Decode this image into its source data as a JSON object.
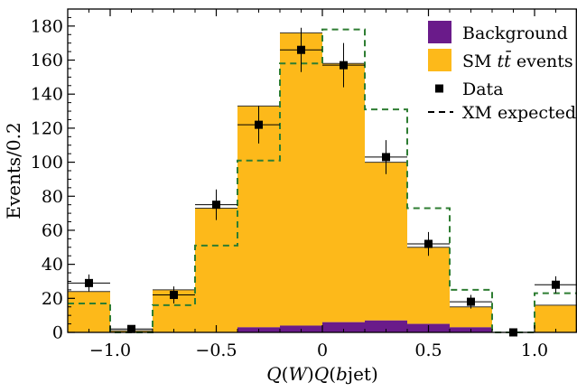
{
  "chart_data": {
    "type": "bar",
    "xlabel": "Q(W)Q(bjet)",
    "ylabel": "Events/0.2",
    "xlim": [
      -1.2,
      1.2
    ],
    "ylim": [
      0,
      190
    ],
    "x_ticks": [
      -1.0,
      -0.5,
      0.0,
      0.5,
      1.0
    ],
    "x_tick_labels": [
      "−1.0",
      "−0.5",
      "0",
      "0.5",
      "1.0"
    ],
    "y_ticks": [
      0,
      20,
      40,
      60,
      80,
      100,
      120,
      140,
      160,
      180
    ],
    "y_tick_labels": [
      "0",
      "20",
      "40",
      "60",
      "80",
      "100",
      "120",
      "140",
      "160",
      "180"
    ],
    "bin_edges": [
      -1.2,
      -1.0,
      -0.8,
      -0.6,
      -0.4,
      -0.2,
      0.0,
      0.2,
      0.4,
      0.6,
      0.8,
      1.0,
      1.2
    ],
    "legend_position": "top-right",
    "colors": {
      "background": "#6a1b8a",
      "sm": "#fdb91a",
      "xm": "#2e7d32",
      "data": "#000000"
    },
    "series": [
      {
        "name": "Background",
        "kind": "stacked-fill",
        "values": [
          0,
          0,
          0,
          0,
          3,
          4,
          6,
          7,
          5,
          3,
          0,
          0
        ]
      },
      {
        "name": "SM tt̄ events",
        "kind": "stacked-fill",
        "values": [
          24,
          1,
          25,
          73,
          130,
          172,
          152,
          93,
          45,
          12,
          0,
          16
        ]
      },
      {
        "name": "XM expected",
        "kind": "dashed-step",
        "values": [
          17,
          0,
          16,
          51,
          101,
          158,
          178,
          131,
          73,
          25,
          0,
          23
        ]
      },
      {
        "name": "Data",
        "kind": "points",
        "x": [
          -1.1,
          -0.9,
          -0.7,
          -0.5,
          -0.3,
          -0.1,
          0.1,
          0.3,
          0.5,
          0.7,
          0.9,
          1.1
        ],
        "values": [
          29,
          2,
          22,
          75,
          122,
          166,
          157,
          103,
          52,
          18,
          0,
          28
        ],
        "errors": [
          5,
          2,
          5,
          9,
          11,
          13,
          13,
          10,
          7,
          4,
          0,
          5
        ]
      }
    ],
    "legend": [
      {
        "label": "Background",
        "symbol": "purple-box"
      },
      {
        "label": "SM tt̄ events",
        "symbol": "orange-box"
      },
      {
        "label": "Data",
        "symbol": "black-square"
      },
      {
        "label": "XM expected",
        "symbol": "dashed-line"
      }
    ]
  }
}
